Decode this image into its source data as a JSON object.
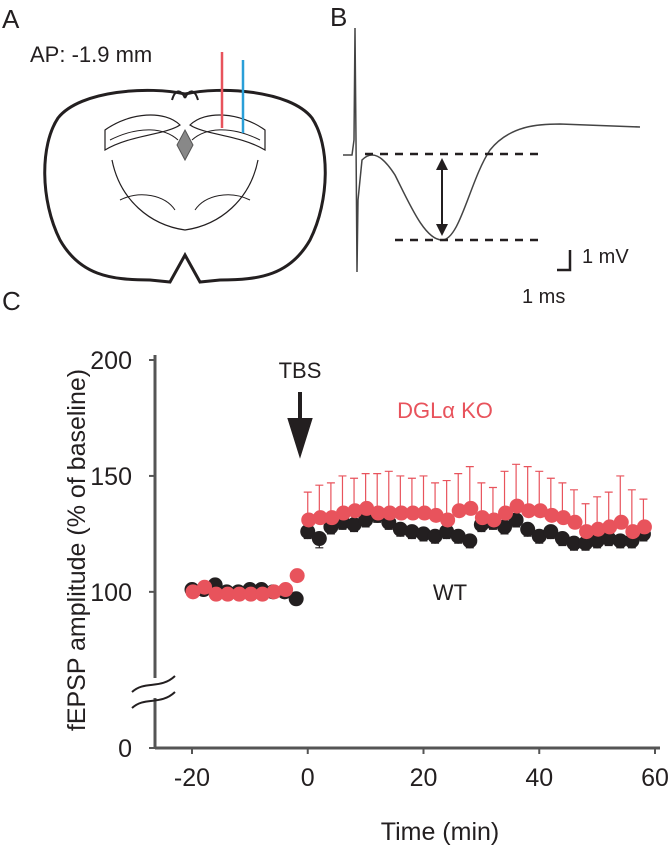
{
  "panels": {
    "a": "A",
    "b": "B",
    "c": "C"
  },
  "annotations": {
    "ap": "AP: -1.9 mm",
    "scale_v": "1 mV",
    "scale_t": "1 ms"
  },
  "chart_data": {
    "type": "scatter",
    "x_label": "Time (min)",
    "y_label": "fEPSP amplitude (% of baseline)",
    "event_label": "TBS",
    "x": [
      -20,
      -18,
      -16,
      -14,
      -12,
      -10,
      -8,
      -6,
      -4,
      -2,
      0,
      2,
      4,
      6,
      8,
      10,
      12,
      14,
      16,
      18,
      20,
      22,
      24,
      26,
      28,
      30,
      32,
      34,
      36,
      38,
      40,
      42,
      44,
      46,
      48,
      50,
      52,
      54,
      56,
      58
    ],
    "series": [
      {
        "name": "WT",
        "color": "#231f20",
        "values": [
          101,
          101,
          103,
          100,
          100,
          101,
          101,
          100,
          100,
          97,
          126,
          123,
          128,
          130,
          129,
          131,
          133,
          130,
          127,
          126,
          125,
          124,
          126,
          124,
          122,
          129,
          130,
          128,
          131,
          127,
          124,
          126,
          123,
          121,
          121,
          122,
          123,
          122,
          122,
          125
        ],
        "errors": [
          2,
          2,
          2,
          2,
          2,
          2,
          2,
          2,
          2,
          2,
          3,
          4,
          3,
          3,
          3,
          3,
          3,
          3,
          3,
          3,
          3,
          3,
          3,
          3,
          3,
          3,
          3,
          3,
          3,
          3,
          3,
          3,
          3,
          3,
          3,
          3,
          3,
          3,
          3,
          3
        ]
      },
      {
        "name": "DGLα KO",
        "color": "#e8535c",
        "values": [
          100,
          102,
          99,
          99,
          99,
          99,
          99,
          100,
          101,
          107,
          131,
          132,
          132,
          134,
          135,
          136,
          134,
          134,
          134,
          134,
          134,
          133,
          131,
          135,
          136,
          132,
          131,
          134,
          137,
          135,
          135,
          133,
          132,
          130,
          126,
          127,
          128,
          130,
          126,
          128
        ],
        "errors": [
          2,
          2,
          2,
          2,
          2,
          2,
          2,
          2,
          2,
          2,
          12,
          14,
          15,
          16,
          14,
          15,
          17,
          18,
          16,
          15,
          16,
          14,
          17,
          16,
          18,
          15,
          14,
          18,
          18,
          19,
          17,
          16,
          15,
          14,
          12,
          14,
          15,
          20,
          18,
          12
        ]
      }
    ],
    "xlim": [
      -26,
      60
    ],
    "xticks": [
      -20,
      0,
      20,
      40,
      60
    ],
    "ylim": [
      0,
      200
    ],
    "yticks": [
      0,
      100,
      150,
      200
    ],
    "axis_break": [
      0,
      65
    ]
  }
}
